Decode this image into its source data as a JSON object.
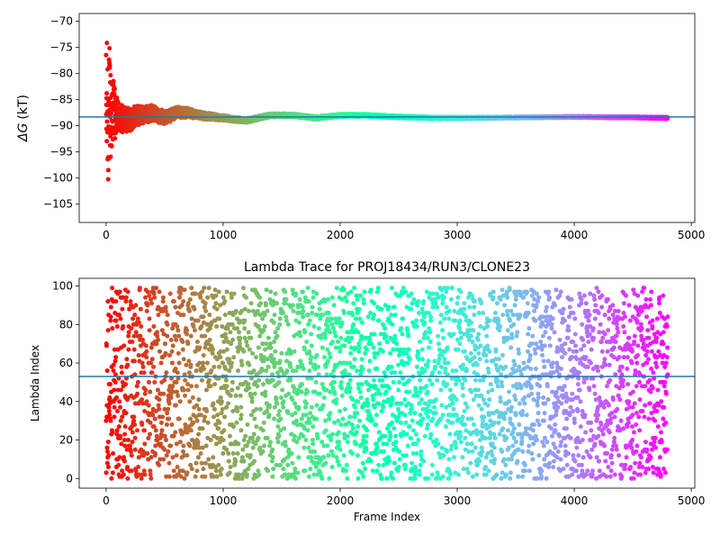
{
  "chart_data": [
    {
      "type": "scatter",
      "title": "",
      "xlabel": "",
      "ylabel_symbol": "ΔG",
      "ylabel_unit": "(kT)",
      "xlim": [
        -230,
        5030
      ],
      "ylim": [
        -108.5,
        -68.5
      ],
      "xticks": [
        0,
        1000,
        2000,
        3000,
        4000,
        5000
      ],
      "yticks": [
        -105,
        -100,
        -95,
        -90,
        -85,
        -80,
        -75,
        -70
      ],
      "ytick_labels": [
        "−105",
        "−100",
        "−95",
        "−90",
        "−85",
        "−80",
        "−75",
        "−70"
      ],
      "hline": -88.3,
      "hline_color": "#1f77b4",
      "colormap": "rainbow",
      "frame_count": 4800,
      "grid": false,
      "series": [
        {
          "x": [
            0,
            10,
            20,
            30,
            40,
            50,
            60,
            70,
            80,
            100,
            120,
            150,
            200,
            250,
            300,
            400,
            500,
            600,
            700,
            800,
            1000,
            1200,
            1400,
            1600,
            1800,
            2000,
            2200,
            2500,
            2800,
            3000,
            3500,
            4000,
            4500,
            4800
          ],
          "y_mean": [
            -88,
            -86,
            -90,
            -84,
            -89,
            -88,
            -86,
            -87,
            -89,
            -88,
            -89,
            -88.5,
            -89,
            -88,
            -88,
            -87.5,
            -88.5,
            -87.5,
            -87.5,
            -88,
            -88.5,
            -89,
            -88,
            -88,
            -88.5,
            -88,
            -88,
            -88.3,
            -88.5,
            -88.5,
            -88.4,
            -88.3,
            -88.4,
            -88.5
          ],
          "y_spread": [
            13,
            13,
            12,
            10,
            9,
            7,
            6,
            5,
            4.5,
            3.5,
            3,
            2.5,
            2.2,
            2,
            1.7,
            1.5,
            1.3,
            1.1,
            0.9,
            0.7,
            0.5,
            0.4,
            0.35,
            0.3,
            0.3,
            0.25,
            0.25,
            0.2,
            0.2,
            0.2,
            0.15,
            0.15,
            0.15,
            0.15
          ]
        }
      ]
    },
    {
      "type": "scatter",
      "title": "Lambda Trace for PROJ18434/RUN3/CLONE23",
      "xlabel": "Frame Index",
      "ylabel": "Lambda Index",
      "xlim": [
        -230,
        5030
      ],
      "ylim": [
        -5,
        104
      ],
      "xticks": [
        0,
        1000,
        2000,
        3000,
        4000,
        5000
      ],
      "yticks": [
        0,
        20,
        40,
        60,
        80,
        100
      ],
      "hline": 53,
      "hline_color": "#1f77b4",
      "colormap": "rainbow",
      "frame_count": 4800,
      "lambda_range": [
        0,
        99
      ],
      "grid": false
    }
  ]
}
